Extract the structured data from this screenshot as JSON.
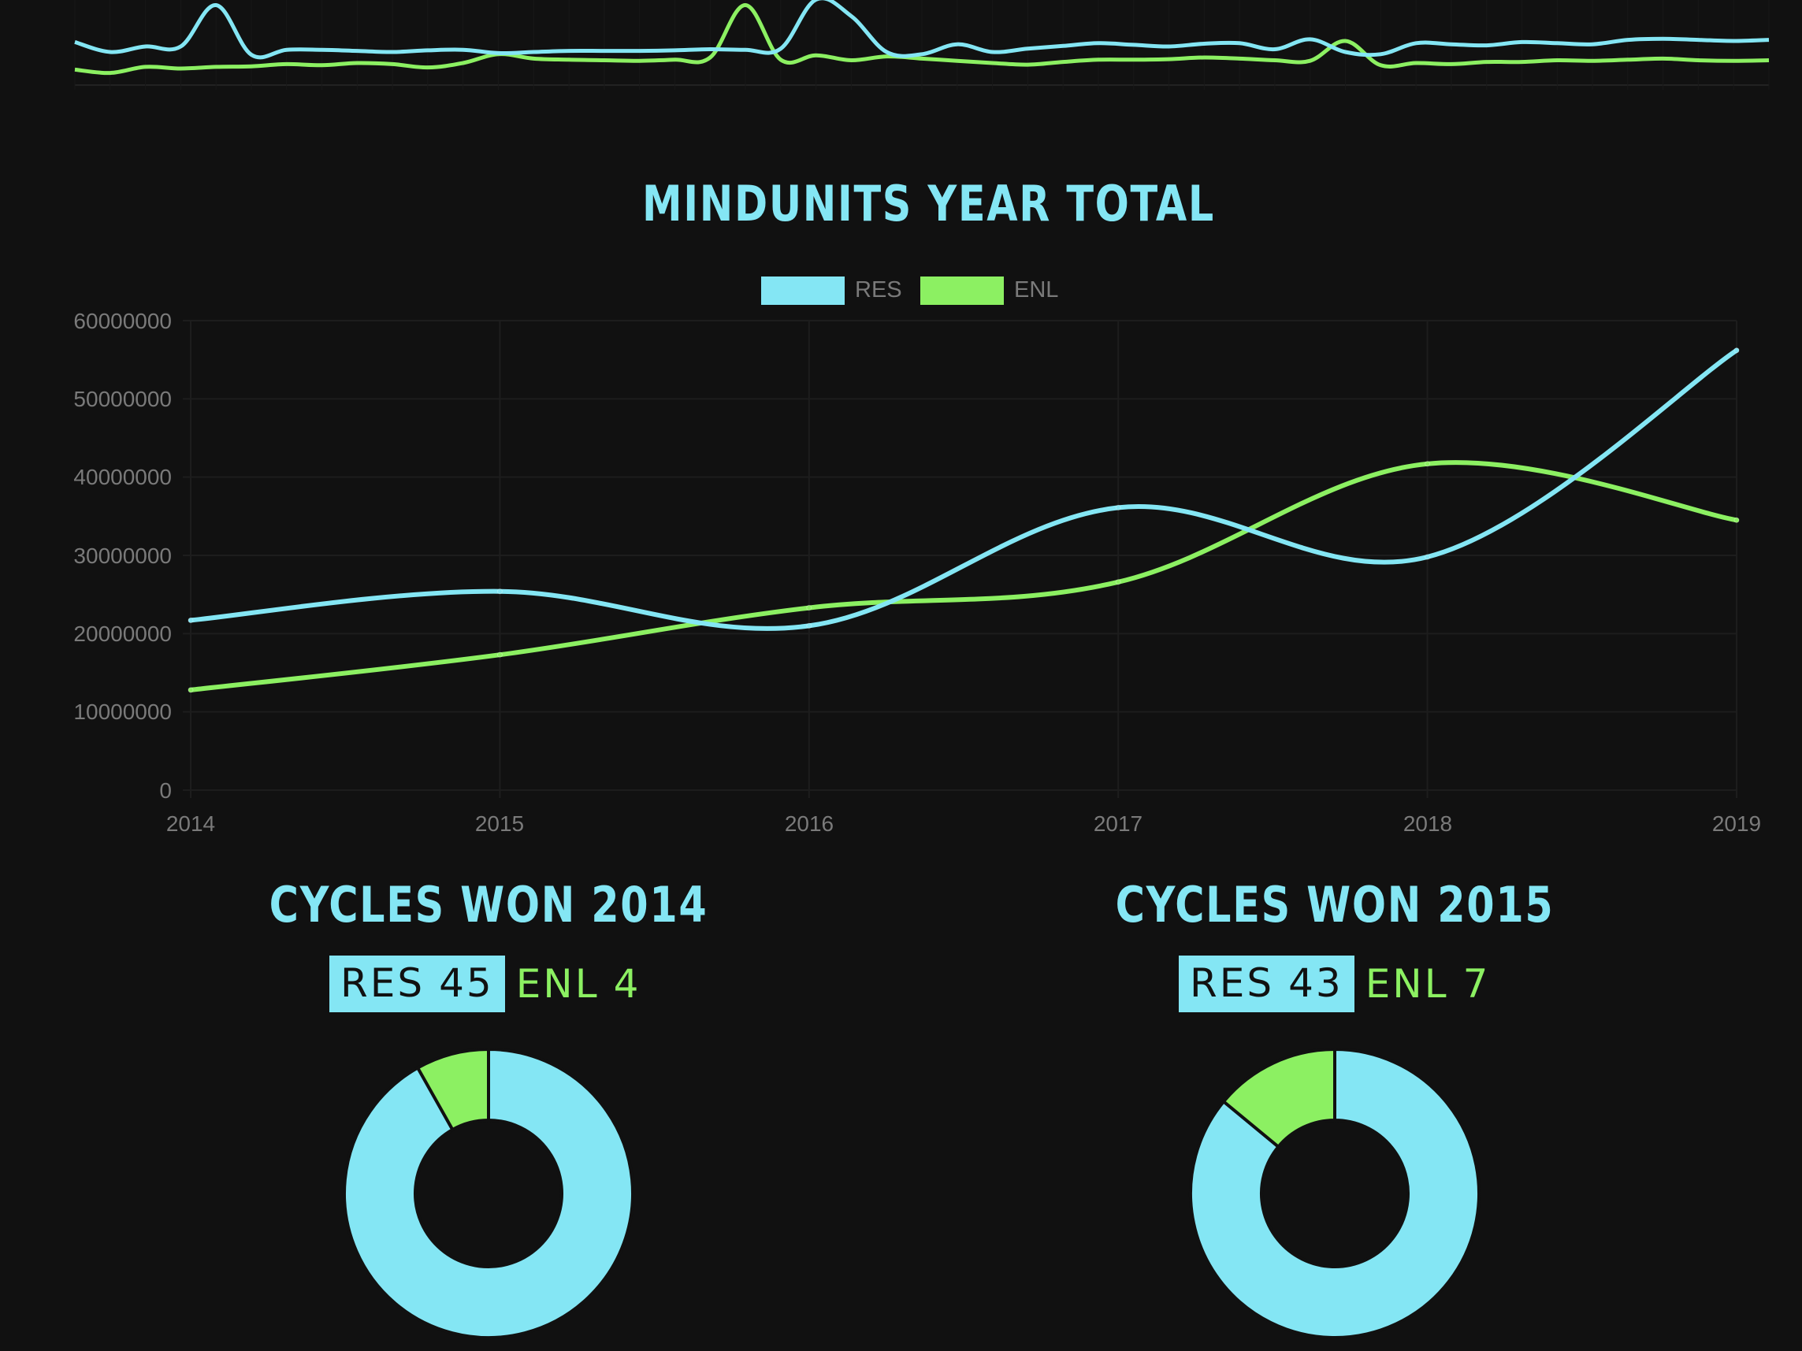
{
  "colors": {
    "background": "#111111",
    "res": "#84e6f4",
    "enl": "#8cf062",
    "axis_text": "#7a7a7a",
    "grid": "#1d1d1d"
  },
  "top_chart": {
    "type": "line",
    "res": [
      0.78,
      0.6,
      0.7,
      0.7,
      1.45,
      0.55,
      0.64,
      0.64,
      0.62,
      0.6,
      0.63,
      0.64,
      0.58,
      0.6,
      0.62,
      0.62,
      0.62,
      0.63,
      0.65,
      0.64,
      0.66,
      1.55,
      1.25,
      0.6,
      0.56,
      0.74,
      0.6,
      0.66,
      0.71,
      0.76,
      0.73,
      0.7,
      0.75,
      0.76,
      0.65,
      0.83,
      0.6,
      0.56,
      0.76,
      0.74,
      0.72,
      0.78,
      0.76,
      0.74,
      0.82,
      0.84,
      0.82,
      0.8,
      0.82
    ],
    "enl": [
      0.28,
      0.22,
      0.33,
      0.3,
      0.33,
      0.34,
      0.38,
      0.36,
      0.4,
      0.38,
      0.32,
      0.4,
      0.56,
      0.48,
      0.46,
      0.45,
      0.44,
      0.46,
      0.5,
      1.45,
      0.46,
      0.54,
      0.45,
      0.52,
      0.48,
      0.44,
      0.4,
      0.37,
      0.42,
      0.46,
      0.46,
      0.47,
      0.5,
      0.48,
      0.45,
      0.44,
      0.8,
      0.36,
      0.4,
      0.38,
      0.42,
      0.42,
      0.45,
      0.44,
      0.46,
      0.48,
      0.45,
      0.44,
      0.45
    ]
  },
  "year_chart": {
    "title": "MINDUNITS YEAR TOTAL",
    "legend": [
      "RES",
      "ENL"
    ],
    "y_ticks": [
      "60000000",
      "50000000",
      "40000000",
      "30000000",
      "20000000",
      "10000000",
      "0"
    ],
    "x_ticks": [
      "2014",
      "2015",
      "2016",
      "2017",
      "2018",
      "2019"
    ]
  },
  "chart_data": {
    "type": "line",
    "title": "MINDUNITS YEAR TOTAL",
    "categories": [
      "2014",
      "2015",
      "2016",
      "2017",
      "2018",
      "2019"
    ],
    "series": [
      {
        "name": "RES",
        "values": [
          21700000,
          25400000,
          21000000,
          36100000,
          29800000,
          56200000
        ]
      },
      {
        "name": "ENL",
        "values": [
          12800000,
          17300000,
          23300000,
          26600000,
          41700000,
          34500000
        ]
      }
    ],
    "ylim": [
      0,
      60000000
    ],
    "grid": true,
    "legend_position": "top"
  },
  "cycles_2014": {
    "title": "CYCLES WON 2014",
    "res_label": "RES",
    "res_value": 45,
    "enl_label": "ENL",
    "enl_value": 4
  },
  "cycles_2015": {
    "title": "CYCLES WON 2015",
    "res_label": "RES",
    "res_value": 43,
    "enl_label": "ENL",
    "enl_value": 7
  }
}
